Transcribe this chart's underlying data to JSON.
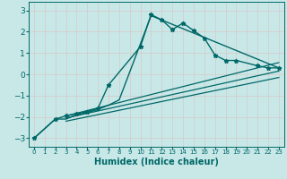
{
  "background_color": "#c8e8e8",
  "grid_color": "#d8c8c8",
  "line_color": "#006868",
  "xlabel": "Humidex (Indice chaleur)",
  "xlim": [
    -0.5,
    23.5
  ],
  "ylim": [
    -3.4,
    3.4
  ],
  "xticks": [
    0,
    1,
    2,
    3,
    4,
    5,
    6,
    7,
    8,
    9,
    10,
    11,
    12,
    13,
    14,
    15,
    16,
    17,
    18,
    19,
    20,
    21,
    22,
    23
  ],
  "yticks": [
    -3,
    -2,
    -1,
    0,
    1,
    2,
    3
  ],
  "line1_x": [
    0,
    2,
    3,
    4,
    5,
    6,
    7,
    10,
    11,
    12,
    13,
    14,
    15,
    16,
    17,
    18,
    19,
    21,
    22,
    23
  ],
  "line1_y": [
    -3.0,
    -2.1,
    -1.95,
    -1.85,
    -1.75,
    -1.6,
    -0.5,
    1.3,
    2.8,
    2.55,
    2.1,
    2.4,
    2.05,
    1.7,
    0.9,
    0.65,
    0.65,
    0.4,
    0.3,
    0.3
  ],
  "line2_x": [
    0,
    2,
    3,
    4,
    5,
    6,
    7,
    8,
    11,
    23
  ],
  "line2_y": [
    -3.0,
    -2.1,
    -2.1,
    -1.9,
    -1.8,
    -1.65,
    -1.45,
    -1.2,
    2.75,
    0.3
  ],
  "line3_x": [
    3,
    23
  ],
  "line3_y": [
    -1.95,
    0.55
  ],
  "line4_x": [
    3,
    23
  ],
  "line4_y": [
    -2.05,
    0.15
  ],
  "line5_x": [
    3,
    23
  ],
  "line5_y": [
    -2.2,
    -0.15
  ]
}
